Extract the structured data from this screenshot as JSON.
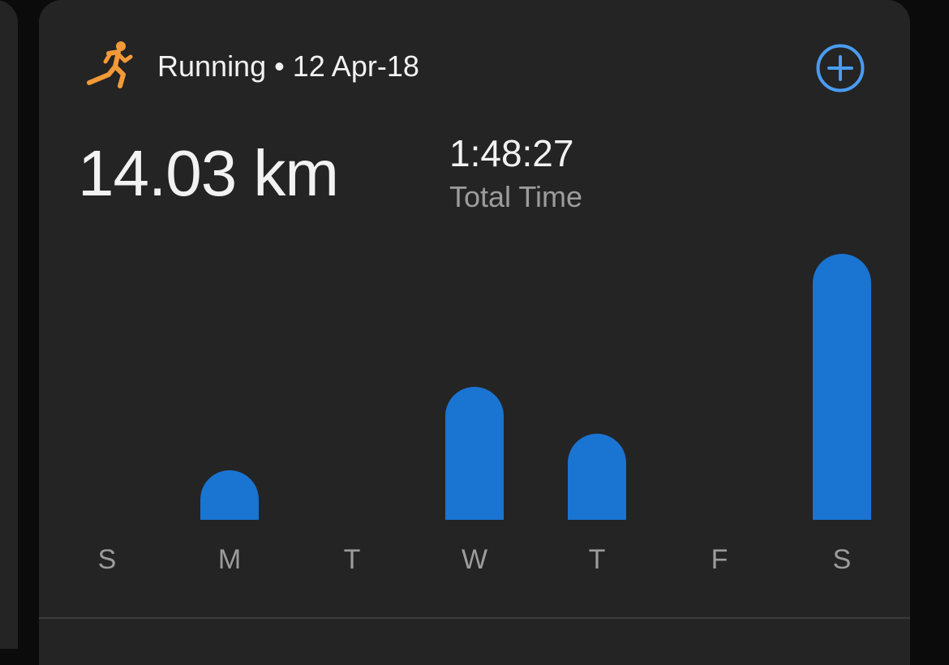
{
  "header": {
    "activity": "Running",
    "separator": "•",
    "date": "12 Apr-18",
    "activity_icon": "running-figure-icon",
    "add_icon": "plus-circle-icon"
  },
  "summary": {
    "distance": "14.03 km",
    "time": "1:48:27",
    "time_label": "Total Time"
  },
  "colors": {
    "accent": "#4a9cf0",
    "bar": "#1a74d2",
    "icon": "#f29a38",
    "card": "#242424"
  },
  "chart_data": {
    "type": "bar",
    "categories": [
      "S",
      "M",
      "T",
      "W",
      "T",
      "F",
      "S"
    ],
    "values": [
      0,
      1.3,
      0,
      3.49,
      2.26,
      0,
      6.98
    ],
    "xlabel": "",
    "ylabel": "",
    "grid": false
  }
}
